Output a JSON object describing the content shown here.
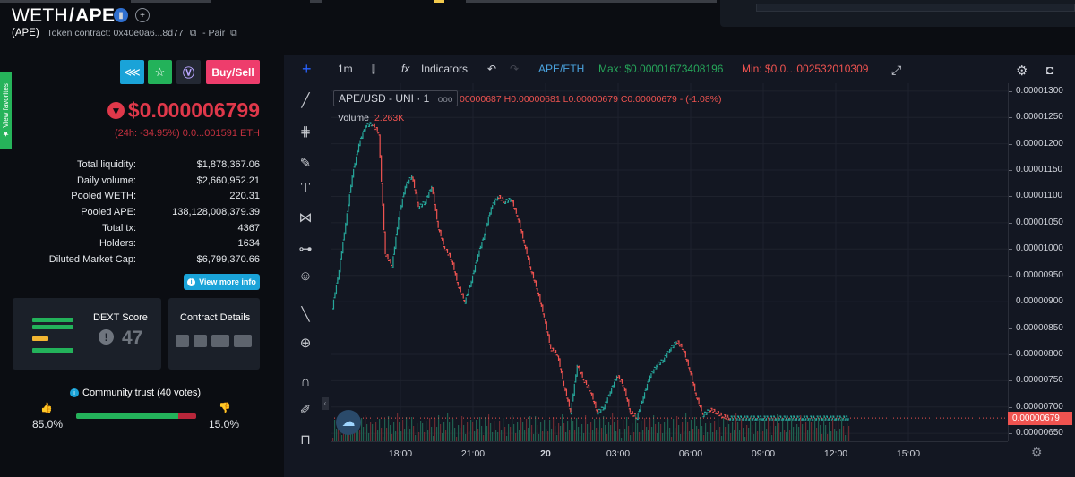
{
  "header": {
    "base": "WETH",
    "slash": "/",
    "quote": "APE",
    "ticker": "(APE)",
    "contract_label": "Token contract: 0x40e0a6...8d77",
    "pair_label": "- Pair"
  },
  "sidebar_tab": {
    "label": "★ View favorites"
  },
  "actions": {
    "buy_sell": "Buy/Sell"
  },
  "price": {
    "value": "$0.000006799",
    "change": "(24h: -34.95%) 0.0...001591 ETH"
  },
  "stats": [
    {
      "label": "Total liquidity:",
      "value": "$1,878,367.06"
    },
    {
      "label": "Daily volume:",
      "value": "$2,660,952.21"
    },
    {
      "label": "Pooled WETH:",
      "value": "220.31"
    },
    {
      "label": "Pooled APE:",
      "value": "138,128,008,379.39"
    },
    {
      "label": "Total tx:",
      "value": "4367"
    },
    {
      "label": "Holders:",
      "value": "1634"
    },
    {
      "label": "Diluted Market Cap:",
      "value": "$6,799,370.66"
    }
  ],
  "view_more": "View more info",
  "dext": {
    "title": "DEXT Score",
    "score": "47"
  },
  "contract": {
    "title": "Contract Details"
  },
  "trust": {
    "title": "Community trust (40 votes)",
    "up_pct": "85.0%",
    "down_pct": "15.0%",
    "up_fraction": 0.85
  },
  "toolbar": {
    "interval": "1m",
    "indicators": "Indicators",
    "pair": "APE/ETH",
    "max": "Max: $0.00001673408196",
    "min": "Min: $0.0…002532010309"
  },
  "legend": {
    "symbol": "APE/USD - UNI · 1",
    "ohlc": "00000687 H0.00000681 L0.00000679 C0.00000679 - (-1.08%)",
    "volume_label": "Volume",
    "volume_value": "2.263K"
  },
  "colors": {
    "up": "#26a69a",
    "down": "#ef5350",
    "accent": "#1aa3d8",
    "buy_sell": "#ee3d6c"
  },
  "chart_data": {
    "type": "line",
    "ylabels": [
      "0.00001300",
      "0.00001250",
      "0.00001200",
      "0.00001150",
      "0.00001100",
      "0.00001050",
      "0.00001000",
      "0.00000950",
      "0.00000900",
      "0.00000850",
      "0.00000800",
      "0.00000750",
      "0.00000700",
      "0.00000650"
    ],
    "current_price": "0.00000679",
    "xlabels": [
      "18:00",
      "21:00",
      "20",
      "03:00",
      "06:00",
      "09:00",
      "12:00",
      "15:00"
    ],
    "x": [
      0,
      0.25,
      0.5,
      0.75,
      1,
      1.25,
      1.5,
      1.75,
      2,
      2.25,
      2.5,
      2.75,
      3,
      3.25,
      3.5,
      3.75,
      4,
      4.25,
      4.5,
      4.75,
      5,
      5.25,
      5.5,
      5.75,
      6,
      6.25,
      6.5,
      6.75,
      7,
      7.25,
      7.5,
      7.75,
      8,
      8.25,
      8.5,
      8.75,
      9,
      9.25,
      9.5,
      9.75,
      10,
      10.25,
      10.5,
      10.75,
      11,
      11.25,
      11.5,
      11.75,
      12,
      12.25,
      12.5,
      12.75,
      13,
      13.25,
      13.5,
      13.75,
      14,
      14.25,
      14.5,
      14.75,
      15,
      15.25,
      15.5,
      15.75,
      16,
      16.25,
      16.5,
      16.75,
      17,
      17.25,
      17.5,
      17.75,
      18,
      18.25,
      18.5,
      18.75,
      19,
      19.25,
      19.5
    ],
    "y": [
      8.9e-06,
      9.6e-06,
      1.05e-05,
      1.14e-05,
      1.2e-05,
      1.235e-05,
      1.238e-05,
      1.22e-05,
      9.9e-06,
      9.68e-06,
      1.06e-05,
      1.12e-05,
      1.14e-05,
      1.08e-05,
      1.09e-05,
      1.12e-05,
      1.04e-05,
      1e-05,
      9.8e-06,
      9.3e-06,
      9e-06,
      9.4e-06,
      9.9e-06,
      1.03e-05,
      1.08e-05,
      1.1e-05,
      1.09e-05,
      1.095e-05,
      1.06e-05,
      1.01e-05,
      9.6e-06,
      9.2e-06,
      8.7e-06,
      8.1e-06,
      8e-06,
      7.4e-06,
      6.9e-06,
      7.8e-06,
      7.5e-06,
      7.3e-06,
      6.9e-06,
      7e-06,
      7.3e-06,
      7.6e-06,
      7.4e-06,
      6.9e-06,
      6.8e-06,
      7.2e-06,
      7.6e-06,
      7.8e-06,
      7.9e-06,
      8.1e-06,
      8.25e-06,
      8.1e-06,
      7.7e-06,
      7.2e-06,
      6.85e-06,
      6.95e-06,
      6.9e-06,
      6.82e-06,
      6.79e-06,
      6.79e-06,
      6.79e-06,
      6.79e-06,
      6.79e-06,
      6.79e-06,
      6.79e-06,
      6.79e-06,
      6.79e-06,
      6.79e-06,
      6.79e-06,
      6.79e-06,
      6.79e-06,
      6.79e-06,
      6.79e-06,
      6.79e-06,
      6.79e-06,
      6.79e-06,
      6.79e-06
    ],
    "ylim": [
      6.35e-06,
      1.315e-05
    ]
  }
}
